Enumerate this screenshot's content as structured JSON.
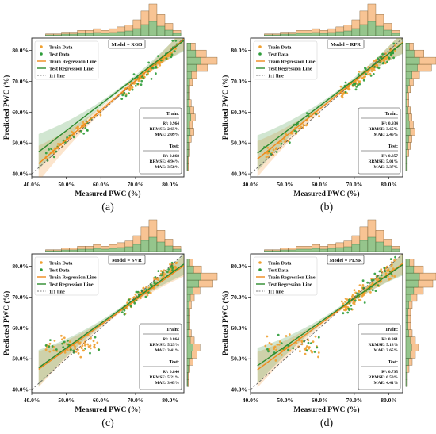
{
  "colors": {
    "train": "#f0a030",
    "test": "#2e9c3a",
    "train_line": "#f08a1c",
    "test_line": "#2e8b2e",
    "identity": "#555555"
  },
  "legend_labels": {
    "train_data": "Train Data",
    "test_data": "Test Data",
    "train_line": "Train Regression Line",
    "test_line": "Test Regression Line",
    "identity": "1:1 line"
  },
  "stats_labels": {
    "train": "Train:",
    "test": "Test:"
  },
  "chart_data": [
    {
      "type": "scatter",
      "panel": "(a)",
      "model_label": "Model = XGB",
      "xlabel": "Measured PWC (%)",
      "ylabel": "Predicted PWC (%)",
      "xlim": [
        40,
        84
      ],
      "ylim": [
        39,
        84
      ],
      "x_ticks": [
        "40.0%",
        "50.0%",
        "60.0%",
        "70.0%",
        "80.0%"
      ],
      "y_ticks": [
        "40.0%",
        "50.0%",
        "60.0%",
        "70.0%",
        "80.0%"
      ],
      "legend_position": "top-left",
      "train_stats": [
        "R²: 0.964",
        "RRMSE: 2.65%",
        "MAE: 2.09%"
      ],
      "test_stats": [
        "R²: 0.868",
        "RRMSE: 4.94%",
        "MAE: 3.58%"
      ],
      "train_fit": {
        "slope": 0.96,
        "intercept": 3.0
      },
      "test_fit": {
        "slope": 0.86,
        "intercept": 11.0
      },
      "seed": 11,
      "noise_train": 1.2,
      "noise_test": 2.6,
      "flat_low": false,
      "top_hist": [
        1,
        1,
        2,
        2,
        3,
        3,
        4,
        3,
        4,
        5,
        6,
        9,
        14,
        18,
        12,
        7,
        3
      ],
      "right_hist": [
        1,
        1,
        2,
        2,
        3,
        5,
        4,
        6,
        5,
        3,
        2,
        2,
        4,
        7,
        15,
        22,
        14,
        6
      ]
    },
    {
      "type": "scatter",
      "panel": "(b)",
      "model_label": "Model = RFR",
      "xlabel": "Measured PWC (%)",
      "ylabel": "Predicted PWC (%)",
      "xlim": [
        40,
        84
      ],
      "ylim": [
        39,
        84
      ],
      "x_ticks": [
        "40.0%",
        "50.0%",
        "60.0%",
        "70.0%",
        "80.0%"
      ],
      "y_ticks": [
        "40.0%",
        "50.0%",
        "60.0%",
        "70.0%",
        "80.0%"
      ],
      "legend_position": "top-left",
      "train_stats": [
        "R²: 0.934",
        "RRMSE: 3.65%",
        "MAE: 2.46%"
      ],
      "test_stats": [
        "R²: 0.857",
        "RRMSE: 5.01%",
        "MAE: 3.37%"
      ],
      "train_fit": {
        "slope": 0.9,
        "intercept": 7.0
      },
      "test_fit": {
        "slope": 0.85,
        "intercept": 11.0
      },
      "seed": 23,
      "noise_train": 1.8,
      "noise_test": 2.5,
      "flat_low": false,
      "top_hist": [
        1,
        1,
        2,
        2,
        3,
        3,
        4,
        3,
        4,
        5,
        6,
        9,
        14,
        18,
        12,
        7,
        3
      ],
      "right_hist": [
        1,
        1,
        2,
        3,
        4,
        6,
        5,
        4,
        3,
        2,
        2,
        3,
        5,
        9,
        17,
        20,
        12,
        5
      ]
    },
    {
      "type": "scatter",
      "panel": "(c)",
      "model_label": "Model = SVR",
      "xlabel": "Measured PWC (%)",
      "ylabel": "Predicted PWC (%)",
      "xlim": [
        40,
        84
      ],
      "ylim": [
        39,
        84
      ],
      "x_ticks": [
        "40.0%",
        "50.0%",
        "60.0%",
        "70.0%",
        "80.0%"
      ],
      "y_ticks": [
        "40.0%",
        "50.0%",
        "60.0%",
        "70.0%",
        "80.0%"
      ],
      "legend_position": "top-left",
      "train_stats": [
        "R²: 0.864",
        "RRMSE: 5.25%",
        "MAE: 3.41%"
      ],
      "test_stats": [
        "R²: 0.846",
        "RRMSE: 5.21%",
        "MAE: 3.45%"
      ],
      "train_fit": {
        "slope": 0.8,
        "intercept": 13.0
      },
      "test_fit": {
        "slope": 0.8,
        "intercept": 13.5
      },
      "seed": 37,
      "noise_train": 1.8,
      "noise_test": 2.0,
      "flat_low": true,
      "top_hist": [
        1,
        1,
        2,
        2,
        3,
        3,
        4,
        3,
        4,
        5,
        6,
        9,
        14,
        18,
        12,
        7,
        3
      ],
      "right_hist": [
        1,
        1,
        2,
        4,
        7,
        9,
        5,
        3,
        2,
        2,
        2,
        3,
        5,
        9,
        18,
        21,
        10,
        4
      ]
    },
    {
      "type": "scatter",
      "panel": "(d)",
      "model_label": "Model = PLSR",
      "xlabel": "Measured PWC (%)",
      "ylabel": "Predicted PWC (%)",
      "xlim": [
        40,
        84
      ],
      "ylim": [
        39,
        84
      ],
      "x_ticks": [
        "40.0%",
        "50.0%",
        "60.0%",
        "70.0%",
        "80.0%"
      ],
      "y_ticks": [
        "40.0%",
        "50.0%",
        "60.0%",
        "70.0%",
        "80.0%"
      ],
      "legend_position": "top-left",
      "train_stats": [
        "R²: 0.861",
        "RRMSE: 5.18%",
        "MAE: 3.65%"
      ],
      "test_stats": [
        "R²: 0.795",
        "RRMSE: 6.50%",
        "MAE: 4.41%"
      ],
      "train_fit": {
        "slope": 0.82,
        "intercept": 12.0
      },
      "test_fit": {
        "slope": 0.78,
        "intercept": 15.0
      },
      "seed": 53,
      "noise_train": 2.6,
      "noise_test": 3.0,
      "flat_low": true,
      "top_hist": [
        1,
        1,
        2,
        2,
        3,
        3,
        4,
        3,
        4,
        5,
        6,
        9,
        14,
        18,
        12,
        7,
        3
      ],
      "right_hist": [
        1,
        1,
        2,
        4,
        6,
        8,
        6,
        4,
        3,
        3,
        3,
        4,
        7,
        11,
        17,
        19,
        11,
        5
      ]
    }
  ]
}
